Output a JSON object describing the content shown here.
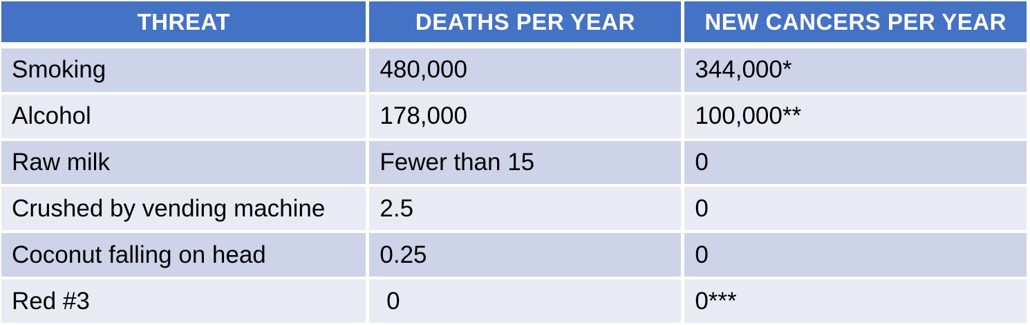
{
  "table": {
    "columns": [
      "THREAT",
      "DEATHS PER YEAR",
      "NEW CANCERS PER YEAR"
    ],
    "rows": [
      {
        "threat": "Smoking",
        "deaths_per_year": "480,000",
        "new_cancers_per_year": "344,000*"
      },
      {
        "threat": "Alcohol",
        "deaths_per_year": "178,000",
        "new_cancers_per_year": "100,000**"
      },
      {
        "threat": "Raw milk",
        "deaths_per_year": "Fewer than 15",
        "new_cancers_per_year": "0"
      },
      {
        "threat": "Crushed by vending machine",
        "deaths_per_year": "2.5",
        "new_cancers_per_year": "0"
      },
      {
        "threat": "Coconut falling on head",
        "deaths_per_year": "0.25",
        "new_cancers_per_year": "0"
      },
      {
        "threat": "Red #3",
        "deaths_per_year": " 0",
        "new_cancers_per_year": "0***"
      }
    ]
  },
  "colors": {
    "header_bg": "#4472C4",
    "header_text": "#FFFFFF",
    "band_dark": "#CDD3E8",
    "band_light": "#E9EBF4",
    "body_text": "#000000"
  },
  "chart_data": {
    "type": "table",
    "title": "",
    "columns": [
      "THREAT",
      "DEATHS PER YEAR",
      "NEW CANCERS PER YEAR"
    ],
    "rows": [
      [
        "Smoking",
        "480,000",
        "344,000*"
      ],
      [
        "Alcohol",
        "178,000",
        "100,000**"
      ],
      [
        "Raw milk",
        "Fewer than 15",
        "0"
      ],
      [
        "Crushed by vending machine",
        "2.5",
        "0"
      ],
      [
        "Coconut falling on head",
        "0.25",
        "0"
      ],
      [
        "Red #3",
        "0",
        "0***"
      ]
    ],
    "layout_hints": {
      "header_style": "bold white on blue, centered",
      "body_style": "black left-aligned, banded rows alternating dark/light periwinkle starting dark"
    }
  }
}
